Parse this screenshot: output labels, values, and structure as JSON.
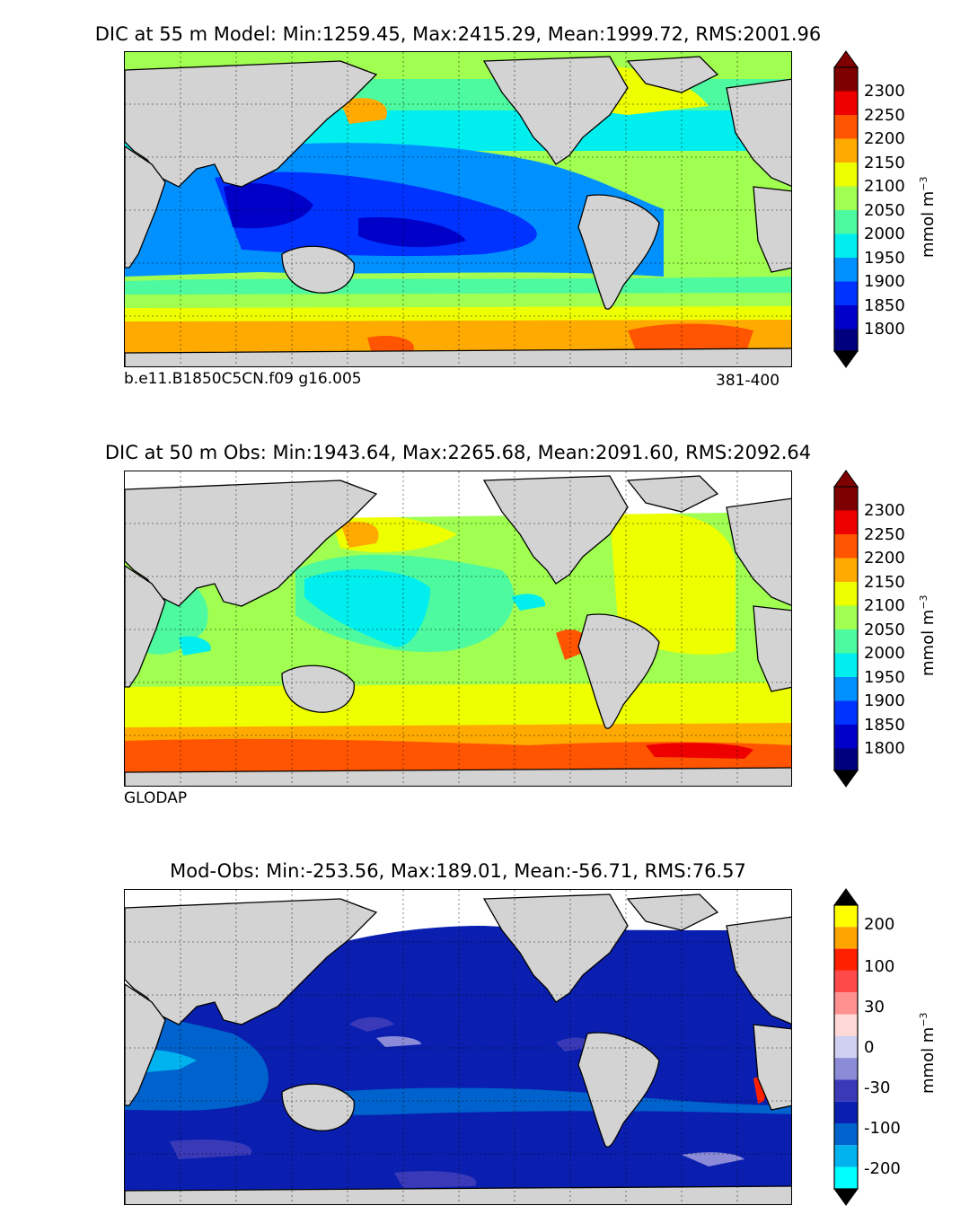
{
  "panels": [
    {
      "title": "DIC at 55 m Model: Min:1259.45, Max:2415.29, Mean:1999.72, RMS:2001.96",
      "left_note": "b.e11.B1850C5CN.f09 g16.005",
      "right_note": "381-400",
      "colorbar_ticks": [
        "1800",
        "1850",
        "1900",
        "1950",
        "2000",
        "2050",
        "2100",
        "2150",
        "2200",
        "2250",
        "2300"
      ],
      "unit": "mmol m",
      "unit_exp": "−3"
    },
    {
      "title": "DIC at 50 m Obs: Min:1943.64, Max:2265.68, Mean:2091.60, RMS:2092.64",
      "left_note": "GLODAP",
      "right_note": "",
      "colorbar_ticks": [
        "1800",
        "1850",
        "1900",
        "1950",
        "2000",
        "2050",
        "2100",
        "2150",
        "2200",
        "2250",
        "2300"
      ],
      "unit": "mmol m",
      "unit_exp": "−3"
    },
    {
      "title": "Mod-Obs: Min:-253.56, Max:189.01, Mean:-56.71, RMS:76.57",
      "left_note": "",
      "right_note": "",
      "colorbar_ticks": [
        "-200",
        "-100",
        "-30",
        "0",
        "30",
        "100",
        "200"
      ],
      "unit": "mmol m",
      "unit_exp": "−3"
    }
  ],
  "colors": {
    "land": "#d3d3d3",
    "jet_scale": [
      "#00007f",
      "#0000c8",
      "#0033ff",
      "#0091ff",
      "#00eeee",
      "#4efa9f",
      "#a0ff50",
      "#eeff00",
      "#ffaa00",
      "#ff5500",
      "#ee0000",
      "#7f0000"
    ],
    "diff_scale": [
      "#00ffff",
      "#00b2ee",
      "#0062cc",
      "#0a1fb0",
      "#3a3ab8",
      "#8b8bd8",
      "#d0d0f2",
      "#ffd8d8",
      "#ff9090",
      "#ff4a4a",
      "#ff2000",
      "#ffa500",
      "#ffff00"
    ]
  }
}
